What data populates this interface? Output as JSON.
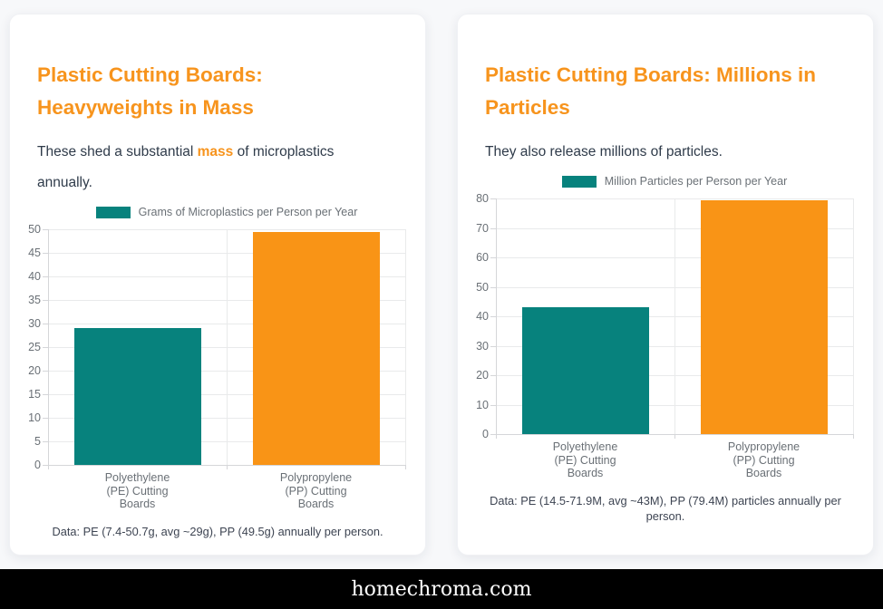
{
  "colors": {
    "accent_orange": "#f7941d",
    "bar_teal": "#07827d",
    "bar_orange": "#f99416",
    "body_text": "#2f3b4a",
    "muted_text": "#6a7076",
    "footnote_text": "#3d4452",
    "gridline": "#e9eaeb",
    "axis_line": "#d5d6d9",
    "page_bg": "#f7f8fa",
    "card_bg": "#ffffff",
    "footer_bg": "#000000",
    "footer_text": "#ffffff"
  },
  "cards": [
    {
      "title_lines": [
        "Plastic Cutting Boards:",
        "Heavyweights in Mass"
      ],
      "subtitle_before": "These shed a substantial ",
      "subtitle_highlight": "mass",
      "subtitle_after": " of microplastics annually.",
      "footnote": "Data: PE (7.4-50.7g, avg ~29g), PP (49.5g) annually per person."
    },
    {
      "title_lines": [
        "Plastic Cutting Boards: Millions in",
        "Particles"
      ],
      "subtitle_before": "They also release millions of particles.",
      "subtitle_highlight": "",
      "subtitle_after": "",
      "footnote": "Data: PE (14.5-71.9M, avg ~43M), PP (79.4M) particles annually per person."
    }
  ],
  "chart_data": [
    {
      "type": "bar",
      "title": "Plastic Cutting Boards: Heavyweights in Mass",
      "legend": "Grams of Microplastics per Person per Year",
      "legend_position": "top",
      "categories": [
        [
          "Polyethylene",
          "(PE) Cutting",
          "Boards"
        ],
        [
          "Polypropylene",
          "(PP) Cutting",
          "Boards"
        ]
      ],
      "values": [
        29,
        49.5
      ],
      "bar_colors": [
        "#07827d",
        "#f99416"
      ],
      "xlabel": "",
      "ylabel": "",
      "ylim": [
        0,
        50
      ],
      "ytick_step": 5,
      "grid": true
    },
    {
      "type": "bar",
      "title": "Plastic Cutting Boards: Millions in Particles",
      "legend": "Million Particles per Person per Year",
      "legend_position": "top",
      "categories": [
        [
          "Polyethylene",
          "(PE) Cutting",
          "Boards"
        ],
        [
          "Polypropylene",
          "(PP) Cutting",
          "Boards"
        ]
      ],
      "values": [
        43,
        79.4
      ],
      "bar_colors": [
        "#07827d",
        "#f99416"
      ],
      "xlabel": "",
      "ylabel": "",
      "ylim": [
        0,
        80
      ],
      "ytick_step": 10,
      "grid": true
    }
  ],
  "footer": {
    "domain": "homechroma.com"
  }
}
